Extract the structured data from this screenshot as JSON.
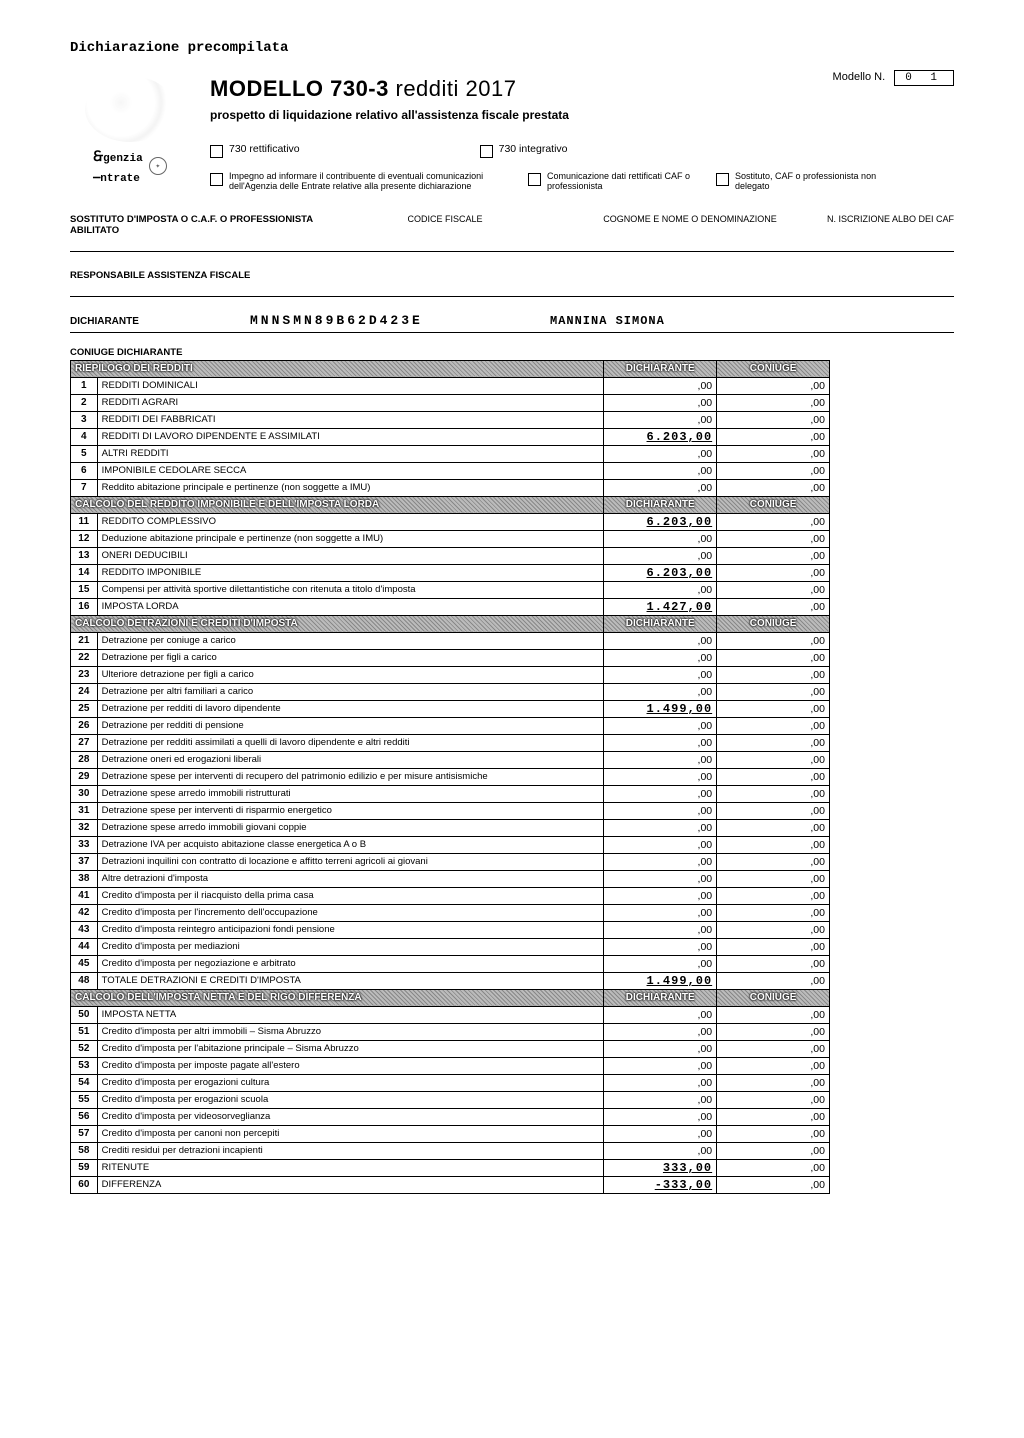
{
  "pretitle": "Dichiarazione precompilata",
  "title_main": "MODELLO 730-3",
  "title_year": "redditi 2017",
  "subtitle": "prospetto di liquidazione relativo all'assistenza fiscale prestata",
  "modello_n_label": "Modello N.",
  "modello_n_value": "0 1",
  "logo_line1": "genzia",
  "logo_line2": "ntrate",
  "checks1": {
    "rettificativo": "730 rettificativo",
    "integrativo": "730 integrativo"
  },
  "checks2": {
    "impegno": "Impegno ad informare il contribuente di eventuali comunicazioni dell'Agenzia delle Entrate relative alla presente dichiarazione",
    "comunicazione": "Comunicazione dati rettificati CAF o professionista",
    "sostituto": "Sostituto, CAF o professionista non delegato"
  },
  "field_headers": {
    "sostituto": "SOSTITUTO D'IMPOSTA O C.A.F. O PROFESSIONISTA ABILITATO",
    "codfisc": "CODICE FISCALE",
    "cognome": "COGNOME E NOME O DENOMINAZIONE",
    "niscr": "N. ISCRIZIONE ALBO DEI CAF"
  },
  "responsabile_label": "RESPONSABILE ASSISTENZA FISCALE",
  "dichiarante": {
    "label": "DICHIARANTE",
    "cf": "MNNSMN89B62D423E",
    "name": "MANNINA SIMONA"
  },
  "coniuge_label": "CONIUGE DICHIARANTE",
  "col_dich": "DICHIARANTE",
  "col_con": "CONIUGE",
  "sections": [
    {
      "header": "RIEPILOGO DEI REDDITI",
      "rows": [
        {
          "n": "1",
          "d": "REDDITI DOMINICALI",
          "v1": ",00",
          "v2": ",00"
        },
        {
          "n": "2",
          "d": "REDDITI AGRARI",
          "v1": ",00",
          "v2": ",00"
        },
        {
          "n": "3",
          "d": "REDDITI DEI FABBRICATI",
          "v1": ",00",
          "v2": ",00"
        },
        {
          "n": "4",
          "d": "REDDITI DI LAVORO DIPENDENTE E ASSIMILATI",
          "v1": "6.203,00",
          "v1big": true,
          "v2": ",00"
        },
        {
          "n": "5",
          "d": "ALTRI REDDITI",
          "v1": ",00",
          "v2": ",00"
        },
        {
          "n": "6",
          "d": "IMPONIBILE CEDOLARE SECCA",
          "v1": ",00",
          "v2": ",00"
        },
        {
          "n": "7",
          "d": "Reddito abitazione principale e pertinenze (non soggette a IMU)",
          "v1": ",00",
          "v2": ",00"
        }
      ]
    },
    {
      "header": "CALCOLO DEL REDDITO IMPONIBILE E DELL'IMPOSTA LORDA",
      "rows": [
        {
          "n": "11",
          "d": "REDDITO COMPLESSIVO",
          "v1": "6.203,00",
          "v1big": true,
          "v2": ",00"
        },
        {
          "n": "12",
          "d": "Deduzione abitazione principale e pertinenze (non soggette a IMU)",
          "v1": ",00",
          "v2": ",00"
        },
        {
          "n": "13",
          "d": "ONERI DEDUCIBILI",
          "v1": ",00",
          "v2": ",00"
        },
        {
          "n": "14",
          "d": "REDDITO IMPONIBILE",
          "v1": "6.203,00",
          "v1big": true,
          "v2": ",00"
        },
        {
          "n": "15",
          "d": "Compensi per attività sportive dilettantistiche con ritenuta a titolo d'imposta",
          "v1": ",00",
          "v2": ",00"
        },
        {
          "n": "16",
          "d": "IMPOSTA LORDA",
          "v1": "1.427,00",
          "v1big": true,
          "v2": ",00"
        }
      ]
    },
    {
      "header": "CALCOLO DETRAZIONI E CREDITI D'IMPOSTA",
      "rows": [
        {
          "n": "21",
          "d": "Detrazione per coniuge a carico",
          "v1": ",00",
          "v2": ",00"
        },
        {
          "n": "22",
          "d": "Detrazione per figli a carico",
          "v1": ",00",
          "v2": ",00"
        },
        {
          "n": "23",
          "d": "Ulteriore detrazione per figli a carico",
          "v1": ",00",
          "v2": ",00"
        },
        {
          "n": "24",
          "d": "Detrazione per altri familiari a carico",
          "v1": ",00",
          "v2": ",00"
        },
        {
          "n": "25",
          "d": "Detrazione per redditi di lavoro dipendente",
          "v1": "1.499,00",
          "v1big": true,
          "v2": ",00"
        },
        {
          "n": "26",
          "d": "Detrazione per redditi di pensione",
          "v1": ",00",
          "v2": ",00"
        },
        {
          "n": "27",
          "d": "Detrazione per redditi assimilati a quelli di lavoro dipendente e altri redditi",
          "v1": ",00",
          "v2": ",00"
        },
        {
          "n": "28",
          "d": "Detrazione oneri ed erogazioni liberali",
          "v1": ",00",
          "v2": ",00"
        },
        {
          "n": "29",
          "d": "Detrazione spese per interventi di recupero del patrimonio edilizio e per misure antisismiche",
          "v1": ",00",
          "v2": ",00"
        },
        {
          "n": "30",
          "d": "Detrazione spese arredo immobili ristrutturati",
          "v1": ",00",
          "v2": ",00"
        },
        {
          "n": "31",
          "d": "Detrazione spese per interventi di risparmio energetico",
          "v1": ",00",
          "v2": ",00"
        },
        {
          "n": "32",
          "d": "Detrazione spese arredo immobili giovani coppie",
          "v1": ",00",
          "v2": ",00"
        },
        {
          "n": "33",
          "d": "Detrazione IVA per acquisto abitazione classe energetica A o B",
          "v1": ",00",
          "v2": ",00"
        },
        {
          "n": "37",
          "d": "Detrazioni inquilini con contratto di locazione e affitto terreni agricoli ai giovani",
          "v1": ",00",
          "v2": ",00"
        },
        {
          "n": "38",
          "d": "Altre detrazioni d'imposta",
          "v1": ",00",
          "v2": ",00"
        },
        {
          "n": "41",
          "d": "Credito d'imposta per il riacquisto della prima casa",
          "v1": ",00",
          "v2": ",00"
        },
        {
          "n": "42",
          "d": "Credito d'imposta per l'incremento dell'occupazione",
          "v1": ",00",
          "v2": ",00"
        },
        {
          "n": "43",
          "d": "Credito d'imposta reintegro anticipazioni fondi pensione",
          "v1": ",00",
          "v2": ",00"
        },
        {
          "n": "44",
          "d": "Credito d'imposta per mediazioni",
          "v1": ",00",
          "v2": ",00"
        },
        {
          "n": "45",
          "d": "Credito d'imposta per negoziazione e arbitrato",
          "v1": ",00",
          "v2": ",00"
        },
        {
          "n": "48",
          "d": "TOTALE DETRAZIONI E CREDITI D'IMPOSTA",
          "v1": "1.499,00",
          "v1big": true,
          "v2": ",00"
        }
      ]
    },
    {
      "header": "CALCOLO DELL'IMPOSTA NETTA E DEL RIGO DIFFERENZA",
      "rows": [
        {
          "n": "50",
          "d": "IMPOSTA NETTA",
          "v1": ",00",
          "v2": ",00"
        },
        {
          "n": "51",
          "d": "Credito d'imposta per altri immobili – Sisma Abruzzo",
          "v1": ",00",
          "v2": ",00"
        },
        {
          "n": "52",
          "d": "Credito d'imposta per l'abitazione principale – Sisma Abruzzo",
          "v1": ",00",
          "v2": ",00"
        },
        {
          "n": "53",
          "d": "Credito d'imposta per imposte pagate all'estero",
          "v1": ",00",
          "v2": ",00"
        },
        {
          "n": "54",
          "d": "Credito d'imposta per erogazioni cultura",
          "v1": ",00",
          "v2": ",00"
        },
        {
          "n": "55",
          "d": "Credito d'imposta per erogazioni scuola",
          "v1": ",00",
          "v2": ",00"
        },
        {
          "n": "56",
          "d": "Credito d'imposta per videosorveglianza",
          "v1": ",00",
          "v2": ",00"
        },
        {
          "n": "57",
          "d": "Credito d'imposta per canoni non percepiti",
          "v1": ",00",
          "v2": ",00"
        },
        {
          "n": "58",
          "d": "Crediti residui per detrazioni incapienti",
          "v1": ",00",
          "v2": ",00"
        },
        {
          "n": "59",
          "d": "RITENUTE",
          "v1": "333,00",
          "v1big": true,
          "v2": ",00"
        },
        {
          "n": "60",
          "d": "DIFFERENZA",
          "v1": "-333,00",
          "v1big": true,
          "v2": ",00"
        }
      ]
    }
  ]
}
